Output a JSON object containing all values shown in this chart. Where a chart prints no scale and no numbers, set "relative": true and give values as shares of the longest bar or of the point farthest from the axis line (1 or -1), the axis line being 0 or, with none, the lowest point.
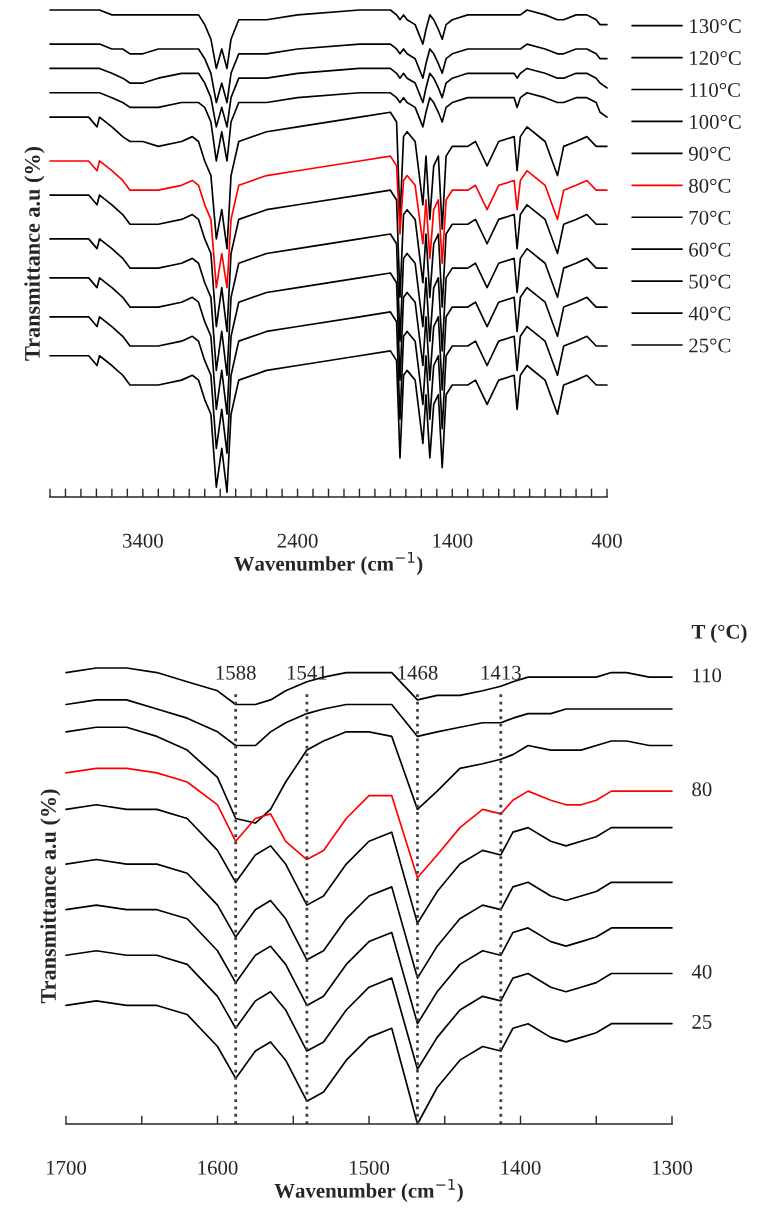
{
  "chart_data": [
    {
      "type": "line",
      "relative": true,
      "xlabel": "Wavenumber (cm$^{−1}$)",
      "ylabel": "Transmittance a.u (%)",
      "legend": "right",
      "xlim": [
        4000,
        400
      ],
      "xticks": [
        {
          "value": 4000,
          "label": null
        },
        {
          "value": 3900,
          "label": null
        },
        {
          "value": 3800,
          "label": null
        },
        {
          "value": 3700,
          "label": null
        },
        {
          "value": 3600,
          "label": null
        },
        {
          "value": 3500,
          "label": null
        },
        3400,
        {
          "value": 3300,
          "label": null
        },
        {
          "value": 3200,
          "label": null
        },
        {
          "value": 3100,
          "label": null
        },
        {
          "value": 3000,
          "label": null
        },
        {
          "value": 2900,
          "label": null
        },
        {
          "value": 2800,
          "label": null
        },
        {
          "value": 2700,
          "label": null
        },
        {
          "value": 2600,
          "label": null
        },
        {
          "value": 2500,
          "label": null
        },
        2400,
        {
          "value": 2300,
          "label": null
        },
        {
          "value": 2200,
          "label": null
        },
        {
          "value": 2100,
          "label": null
        },
        {
          "value": 2000,
          "label": null
        },
        {
          "value": 1900,
          "label": null
        },
        {
          "value": 1800,
          "label": null
        },
        {
          "value": 1700,
          "label": null
        },
        {
          "value": 1600,
          "label": null
        },
        {
          "value": 1500,
          "label": null
        },
        1400,
        {
          "value": 1300,
          "label": null
        },
        {
          "value": 1200,
          "label": null
        },
        {
          "value": 1100,
          "label": null
        },
        {
          "value": 1000,
          "label": null
        },
        {
          "value": 900,
          "label": null
        },
        {
          "value": 800,
          "label": null
        },
        {
          "value": 700,
          "label": null
        },
        {
          "value": 600,
          "label": null
        },
        {
          "value": 500,
          "label": null
        },
        400
      ],
      "x": [
        4000,
        3750,
        3696,
        3680,
        3600,
        3530,
        3483,
        3400,
        3300,
        3150,
        3080,
        3040,
        3000,
        2960,
        2925,
        2890,
        2856,
        2830,
        2780,
        2600,
        2400,
        2000,
        1800,
        1760,
        1738,
        1715,
        1692,
        1640,
        1590,
        1570,
        1545,
        1520,
        1490,
        1465,
        1440,
        1400,
        1300,
        1250,
        1175,
        1100,
        1000,
        981,
        960,
        917,
        800,
        720,
        680,
        600,
        530,
        470,
        445,
        400
      ],
      "series": [
        {
          "name": "130°C",
          "color": "#000000",
          "values": [
            1.0,
            1.0,
            1.0,
            1.0,
            0.99,
            0.99,
            0.99,
            0.99,
            0.99,
            0.99,
            0.99,
            0.99,
            0.97,
            0.94,
            0.88,
            0.92,
            0.88,
            0.94,
            0.98,
            0.98,
            0.99,
            1.0,
            1.0,
            0.99,
            0.98,
            0.99,
            0.98,
            0.97,
            0.93,
            0.96,
            0.99,
            0.98,
            0.96,
            0.94,
            0.97,
            0.98,
            0.99,
            0.99,
            0.99,
            0.99,
            0.99,
            0.99,
            0.99,
            1.0,
            0.99,
            0.98,
            0.98,
            0.99,
            0.99,
            0.98,
            0.97,
            0.97
          ]
        },
        {
          "name": "120°C",
          "color": "#000000",
          "values": [
            0.93,
            0.93,
            0.93,
            0.93,
            0.92,
            0.92,
            0.91,
            0.91,
            0.92,
            0.92,
            0.92,
            0.92,
            0.9,
            0.87,
            0.81,
            0.85,
            0.81,
            0.87,
            0.91,
            0.91,
            0.92,
            0.93,
            0.93,
            0.92,
            0.91,
            0.92,
            0.91,
            0.9,
            0.86,
            0.89,
            0.92,
            0.91,
            0.89,
            0.87,
            0.9,
            0.91,
            0.92,
            0.92,
            0.92,
            0.92,
            0.92,
            0.92,
            0.92,
            0.93,
            0.92,
            0.91,
            0.91,
            0.92,
            0.92,
            0.91,
            0.9,
            0.9
          ]
        },
        {
          "name": "110°C",
          "color": "#000000",
          "values": [
            0.88,
            0.88,
            0.88,
            0.88,
            0.87,
            0.86,
            0.85,
            0.85,
            0.86,
            0.87,
            0.87,
            0.87,
            0.85,
            0.82,
            0.76,
            0.8,
            0.76,
            0.82,
            0.86,
            0.86,
            0.87,
            0.88,
            0.88,
            0.87,
            0.86,
            0.87,
            0.86,
            0.85,
            0.81,
            0.84,
            0.87,
            0.86,
            0.84,
            0.82,
            0.85,
            0.86,
            0.87,
            0.87,
            0.87,
            0.87,
            0.87,
            0.86,
            0.87,
            0.88,
            0.87,
            0.86,
            0.86,
            0.87,
            0.87,
            0.86,
            0.85,
            0.84
          ]
        },
        {
          "name": "100°C",
          "color": "#000000",
          "values": [
            0.83,
            0.83,
            0.83,
            0.83,
            0.82,
            0.81,
            0.8,
            0.8,
            0.8,
            0.81,
            0.81,
            0.81,
            0.8,
            0.77,
            0.69,
            0.75,
            0.69,
            0.77,
            0.81,
            0.81,
            0.82,
            0.83,
            0.83,
            0.82,
            0.81,
            0.82,
            0.81,
            0.8,
            0.76,
            0.79,
            0.82,
            0.81,
            0.79,
            0.77,
            0.8,
            0.81,
            0.82,
            0.82,
            0.82,
            0.82,
            0.82,
            0.8,
            0.82,
            0.83,
            0.82,
            0.81,
            0.81,
            0.82,
            0.82,
            0.81,
            0.79,
            0.78
          ]
        },
        {
          "name": "90°C",
          "color": "#000000",
          "values": [
            0.78,
            0.78,
            0.76,
            0.78,
            0.76,
            0.74,
            0.73,
            0.73,
            0.72,
            0.73,
            0.74,
            0.73,
            0.69,
            0.66,
            0.53,
            0.59,
            0.51,
            0.66,
            0.73,
            0.75,
            0.76,
            0.78,
            0.79,
            0.77,
            0.57,
            0.74,
            0.75,
            0.73,
            0.6,
            0.7,
            0.57,
            0.68,
            0.7,
            0.55,
            0.7,
            0.72,
            0.72,
            0.73,
            0.68,
            0.73,
            0.74,
            0.67,
            0.74,
            0.76,
            0.73,
            0.66,
            0.72,
            0.73,
            0.74,
            0.72,
            0.72,
            0.72
          ]
        },
        {
          "name": "80°C",
          "color": "#ff0000",
          "values": [
            0.69,
            0.69,
            0.67,
            0.69,
            0.67,
            0.65,
            0.63,
            0.63,
            0.63,
            0.64,
            0.65,
            0.64,
            0.6,
            0.57,
            0.43,
            0.5,
            0.43,
            0.57,
            0.64,
            0.66,
            0.67,
            0.69,
            0.7,
            0.68,
            0.54,
            0.65,
            0.66,
            0.64,
            0.52,
            0.61,
            0.49,
            0.59,
            0.61,
            0.48,
            0.61,
            0.63,
            0.63,
            0.64,
            0.59,
            0.64,
            0.65,
            0.59,
            0.65,
            0.67,
            0.64,
            0.57,
            0.63,
            0.64,
            0.65,
            0.63,
            0.63,
            0.63
          ]
        },
        {
          "name": "70°C",
          "color": "#000000",
          "values": [
            0.62,
            0.62,
            0.6,
            0.62,
            0.6,
            0.58,
            0.56,
            0.56,
            0.56,
            0.57,
            0.58,
            0.57,
            0.53,
            0.5,
            0.35,
            0.43,
            0.34,
            0.5,
            0.57,
            0.59,
            0.6,
            0.62,
            0.63,
            0.61,
            0.41,
            0.58,
            0.59,
            0.57,
            0.44,
            0.54,
            0.41,
            0.52,
            0.54,
            0.39,
            0.54,
            0.56,
            0.56,
            0.57,
            0.52,
            0.57,
            0.58,
            0.51,
            0.58,
            0.6,
            0.57,
            0.5,
            0.56,
            0.57,
            0.58,
            0.56,
            0.56,
            0.56
          ]
        },
        {
          "name": "60°C",
          "color": "#000000",
          "values": [
            0.53,
            0.53,
            0.51,
            0.53,
            0.51,
            0.49,
            0.47,
            0.47,
            0.47,
            0.48,
            0.49,
            0.48,
            0.44,
            0.41,
            0.26,
            0.34,
            0.25,
            0.41,
            0.48,
            0.5,
            0.51,
            0.53,
            0.54,
            0.52,
            0.32,
            0.49,
            0.5,
            0.48,
            0.35,
            0.45,
            0.32,
            0.43,
            0.45,
            0.3,
            0.45,
            0.47,
            0.47,
            0.48,
            0.43,
            0.48,
            0.49,
            0.42,
            0.49,
            0.51,
            0.48,
            0.41,
            0.47,
            0.48,
            0.49,
            0.47,
            0.47,
            0.47
          ]
        },
        {
          "name": "50°C",
          "color": "#000000",
          "values": [
            0.45,
            0.45,
            0.43,
            0.45,
            0.43,
            0.41,
            0.39,
            0.39,
            0.39,
            0.4,
            0.41,
            0.4,
            0.36,
            0.33,
            0.18,
            0.26,
            0.17,
            0.33,
            0.4,
            0.42,
            0.43,
            0.45,
            0.46,
            0.44,
            0.24,
            0.41,
            0.42,
            0.4,
            0.27,
            0.37,
            0.24,
            0.35,
            0.37,
            0.22,
            0.37,
            0.39,
            0.39,
            0.4,
            0.35,
            0.4,
            0.41,
            0.34,
            0.41,
            0.43,
            0.4,
            0.33,
            0.39,
            0.4,
            0.41,
            0.39,
            0.39,
            0.39
          ]
        },
        {
          "name": "40°C",
          "color": "#000000",
          "values": [
            0.37,
            0.37,
            0.35,
            0.37,
            0.35,
            0.33,
            0.31,
            0.31,
            0.31,
            0.32,
            0.33,
            0.32,
            0.28,
            0.25,
            0.1,
            0.18,
            0.09,
            0.25,
            0.32,
            0.34,
            0.35,
            0.37,
            0.38,
            0.36,
            0.16,
            0.33,
            0.34,
            0.32,
            0.19,
            0.29,
            0.16,
            0.27,
            0.29,
            0.14,
            0.29,
            0.31,
            0.31,
            0.32,
            0.27,
            0.32,
            0.33,
            0.26,
            0.33,
            0.35,
            0.32,
            0.25,
            0.31,
            0.32,
            0.33,
            0.31,
            0.31,
            0.31
          ]
        },
        {
          "name": "25°C",
          "color": "#000000",
          "values": [
            0.29,
            0.29,
            0.27,
            0.29,
            0.27,
            0.25,
            0.23,
            0.23,
            0.23,
            0.24,
            0.25,
            0.24,
            0.2,
            0.17,
            0.02,
            0.1,
            0.01,
            0.17,
            0.24,
            0.26,
            0.27,
            0.29,
            0.3,
            0.28,
            0.08,
            0.25,
            0.26,
            0.24,
            0.11,
            0.21,
            0.08,
            0.19,
            0.21,
            0.06,
            0.21,
            0.23,
            0.23,
            0.24,
            0.19,
            0.24,
            0.25,
            0.18,
            0.25,
            0.27,
            0.24,
            0.17,
            0.23,
            0.24,
            0.25,
            0.23,
            0.23,
            0.23
          ]
        }
      ]
    },
    {
      "type": "line",
      "relative": true,
      "xlabel": "Wavenumber (cm$^{−1}$)",
      "ylabel": "Transmittance a.u (%)",
      "legend_title": "T (°C)",
      "xlim": [
        1700,
        1300
      ],
      "xticks": [
        1700,
        {
          "value": 1650,
          "label": null
        },
        1600,
        {
          "value": 1550,
          "label": null
        },
        1500,
        {
          "value": 1450,
          "label": null
        },
        1400,
        {
          "value": 1350,
          "label": null
        },
        1300
      ],
      "x": [
        1700,
        1680,
        1660,
        1640,
        1620,
        1600,
        1588,
        1575,
        1565,
        1555,
        1541,
        1530,
        1515,
        1500,
        1485,
        1468,
        1455,
        1440,
        1425,
        1413,
        1405,
        1395,
        1380,
        1370,
        1360,
        1350,
        1340,
        1330,
        1315,
        1300
      ],
      "ref_lines": [
        {
          "axis": "x",
          "value": 1588,
          "label": "1588",
          "color": "#404040",
          "line_style": "dotted"
        },
        {
          "axis": "x",
          "value": 1541,
          "label": "1541",
          "color": "#404040",
          "line_style": "dotted"
        },
        {
          "axis": "x",
          "value": 1468,
          "label": "1468",
          "color": "#404040",
          "line_style": "dotted"
        },
        {
          "axis": "x",
          "value": 1413,
          "label": "1413",
          "color": "#404040",
          "line_style": "dotted"
        }
      ],
      "series": [
        {
          "name": "110",
          "color": "#000000",
          "values": [
            0.99,
            1.0,
            1.0,
            0.99,
            0.97,
            0.95,
            0.92,
            0.92,
            0.93,
            0.95,
            0.97,
            0.98,
            0.99,
            0.99,
            0.99,
            0.93,
            0.94,
            0.94,
            0.95,
            0.96,
            0.97,
            0.98,
            0.98,
            0.98,
            0.98,
            0.98,
            0.99,
            0.99,
            0.98,
            0.98
          ]
        },
        {
          "color": "#000000",
          "values": [
            0.92,
            0.93,
            0.93,
            0.91,
            0.89,
            0.86,
            0.83,
            0.83,
            0.86,
            0.88,
            0.9,
            0.91,
            0.92,
            0.92,
            0.92,
            0.85,
            0.86,
            0.87,
            0.88,
            0.88,
            0.89,
            0.9,
            0.9,
            0.91,
            0.91,
            0.91,
            0.91,
            0.91,
            0.91,
            0.91
          ]
        },
        {
          "color": "#000000",
          "values": [
            0.86,
            0.87,
            0.87,
            0.85,
            0.82,
            0.76,
            0.67,
            0.66,
            0.69,
            0.75,
            0.82,
            0.84,
            0.86,
            0.86,
            0.85,
            0.69,
            0.73,
            0.78,
            0.79,
            0.8,
            0.81,
            0.83,
            0.82,
            0.82,
            0.82,
            0.83,
            0.84,
            0.84,
            0.83,
            0.83
          ]
        },
        {
          "name": "80",
          "color": "#ff0000",
          "values": [
            0.77,
            0.78,
            0.78,
            0.77,
            0.75,
            0.7,
            0.62,
            0.67,
            0.68,
            0.62,
            0.58,
            0.6,
            0.67,
            0.72,
            0.72,
            0.54,
            0.59,
            0.65,
            0.69,
            0.68,
            0.71,
            0.73,
            0.71,
            0.7,
            0.7,
            0.71,
            0.73,
            0.73,
            0.73,
            0.73
          ]
        },
        {
          "color": "#000000",
          "values": [
            0.69,
            0.7,
            0.69,
            0.69,
            0.67,
            0.6,
            0.53,
            0.59,
            0.61,
            0.57,
            0.48,
            0.5,
            0.57,
            0.62,
            0.64,
            0.44,
            0.51,
            0.57,
            0.6,
            0.59,
            0.64,
            0.65,
            0.62,
            0.61,
            0.62,
            0.63,
            0.65,
            0.65,
            0.65,
            0.65
          ]
        },
        {
          "color": "#000000",
          "values": [
            0.57,
            0.58,
            0.57,
            0.57,
            0.55,
            0.48,
            0.41,
            0.47,
            0.49,
            0.45,
            0.36,
            0.38,
            0.45,
            0.5,
            0.52,
            0.32,
            0.39,
            0.45,
            0.48,
            0.47,
            0.52,
            0.53,
            0.5,
            0.49,
            0.5,
            0.51,
            0.53,
            0.53,
            0.53,
            0.53
          ]
        },
        {
          "color": "#000000",
          "values": [
            0.47,
            0.48,
            0.47,
            0.47,
            0.45,
            0.38,
            0.31,
            0.37,
            0.39,
            0.35,
            0.26,
            0.28,
            0.35,
            0.4,
            0.42,
            0.22,
            0.29,
            0.35,
            0.38,
            0.37,
            0.42,
            0.43,
            0.4,
            0.39,
            0.4,
            0.41,
            0.43,
            0.43,
            0.43,
            0.43
          ]
        },
        {
          "name": "40",
          "color": "#000000",
          "values": [
            0.37,
            0.38,
            0.37,
            0.37,
            0.35,
            0.28,
            0.21,
            0.27,
            0.29,
            0.25,
            0.16,
            0.18,
            0.25,
            0.3,
            0.32,
            0.12,
            0.19,
            0.25,
            0.28,
            0.27,
            0.32,
            0.33,
            0.3,
            0.29,
            0.3,
            0.31,
            0.33,
            0.33,
            0.33,
            0.33
          ]
        },
        {
          "name": "25",
          "color": "#000000",
          "values": [
            0.26,
            0.27,
            0.26,
            0.26,
            0.24,
            0.17,
            0.1,
            0.16,
            0.18,
            0.14,
            0.05,
            0.07,
            0.14,
            0.19,
            0.21,
            0.0,
            0.08,
            0.14,
            0.17,
            0.16,
            0.21,
            0.22,
            0.19,
            0.18,
            0.19,
            0.2,
            0.22,
            0.22,
            0.22,
            0.22
          ]
        }
      ]
    }
  ]
}
